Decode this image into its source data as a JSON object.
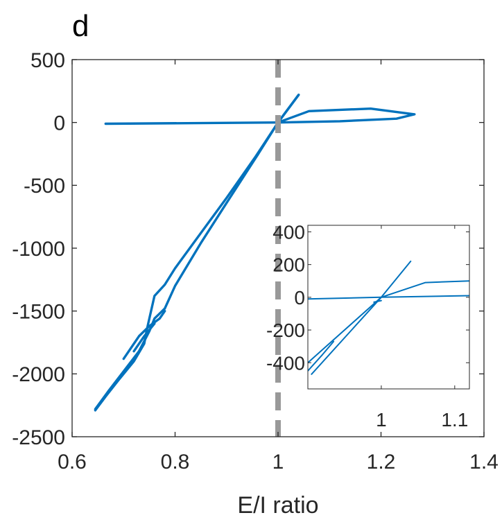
{
  "panel_label": "d",
  "colors": {
    "series": "#0072BD",
    "reference_line": "#999999",
    "axes": "#262626"
  },
  "chart_data": [
    {
      "type": "line",
      "role": "main",
      "xlabel": "E/I ratio",
      "ylabel": "",
      "xlim": [
        0.6,
        1.4
      ],
      "ylim": [
        -2500,
        500
      ],
      "xticks": [
        0.6,
        0.8,
        1,
        1.2,
        1.4
      ],
      "xtick_labels": [
        "0.6",
        "0.8",
        "1",
        "1.2",
        "1.4"
      ],
      "yticks": [
        -2500,
        -2000,
        -1500,
        -1000,
        -500,
        0,
        500
      ],
      "ytick_labels": [
        "-2500",
        "-2000",
        "-1500",
        "-1000",
        "-500",
        "0",
        "500"
      ],
      "grid": false,
      "reference_line": {
        "orientation": "vertical",
        "x": 1,
        "style": "dashed"
      },
      "series": [
        {
          "segments": [
            {
              "x": [
                0.665,
                1.0
              ],
              "y": [
                -10,
                0
              ]
            },
            {
              "x": [
                1.0,
                1.04
              ],
              "y": [
                0,
                220
              ]
            },
            {
              "x": [
                1.0,
                1.06,
                1.18,
                1.265,
                1.23,
                1.12,
                1.0
              ],
              "y": [
                0,
                90,
                110,
                65,
                30,
                10,
                0
              ]
            },
            {
              "x": [
                1.0,
                0.955,
                0.9,
                0.85,
                0.8,
                0.78,
                0.76,
                0.75,
                0.745,
                0.74,
                0.72,
                0.69,
                0.665,
                0.645
              ],
              "y": [
                0,
                -280,
                -600,
                -880,
                -1160,
                -1290,
                -1380,
                -1560,
                -1650,
                -1760,
                -1900,
                -2050,
                -2180,
                -2290
              ]
            },
            {
              "x": [
                0.645,
                0.67,
                0.7,
                0.73,
                0.75,
                0.76,
                0.77,
                0.78,
                0.8,
                0.85,
                0.9,
                0.96
              ],
              "y": [
                -2280,
                -2140,
                -1980,
                -1820,
                -1660,
                -1560,
                -1520,
                -1480,
                -1300,
                -960,
                -640,
                -260
              ]
            },
            {
              "x": [
                0.96,
                1.0,
                1.04
              ],
              "y": [
                -260,
                0,
                220
              ]
            },
            {
              "x": [
                0.7,
                0.73,
                0.75,
                0.77,
                0.78
              ],
              "y": [
                -1880,
                -1700,
                -1620,
                -1560,
                -1500
              ]
            },
            {
              "x": [
                0.72,
                0.74,
                0.76
              ],
              "y": [
                -1820,
                -1700,
                -1600
              ]
            }
          ]
        }
      ]
    },
    {
      "type": "line",
      "role": "inset",
      "xlabel": "",
      "ylabel": "",
      "xlim": [
        0.9,
        1.12
      ],
      "ylim": [
        -560,
        440
      ],
      "xticks": [
        1,
        1.1
      ],
      "xtick_labels": [
        "1",
        "1.1"
      ],
      "yticks": [
        -400,
        -200,
        0,
        200,
        400
      ],
      "ytick_labels": [
        "-400",
        "-200",
        "0",
        "200",
        "400"
      ],
      "grid": false,
      "series": [
        {
          "segments": [
            {
              "x": [
                0.9,
                1.0,
                1.12
              ],
              "y": [
                -10,
                0,
                10
              ]
            },
            {
              "x": [
                0.905,
                1.0,
                1.06,
                1.12
              ],
              "y": [
                -470,
                0,
                90,
                100
              ]
            },
            {
              "x": [
                0.9,
                1.0,
                1.04
              ],
              "y": [
                -400,
                0,
                220
              ]
            },
            {
              "x": [
                0.9,
                0.92,
                0.935
              ],
              "y": [
                -450,
                -350,
                -270
              ]
            },
            {
              "x": [
                0.99,
                1.0
              ],
              "y": [
                -30,
                -20
              ]
            }
          ]
        }
      ]
    }
  ]
}
